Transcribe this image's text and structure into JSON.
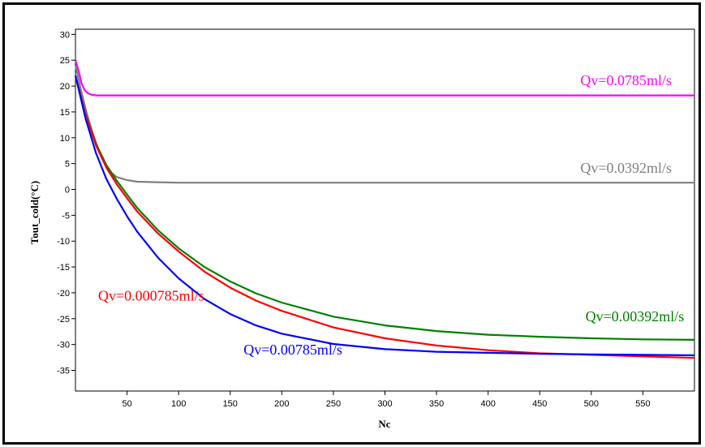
{
  "chart_data": {
    "type": "line",
    "xlabel": "Nc",
    "ylabel": "Tout_cold(°C)",
    "xlim": [
      0,
      600
    ],
    "ylim": [
      -39,
      31
    ],
    "xticks": [
      50,
      100,
      150,
      200,
      250,
      300,
      350,
      400,
      450,
      500,
      550
    ],
    "yticks": [
      30,
      25,
      20,
      15,
      10,
      5,
      0,
      -5,
      -10,
      -15,
      -20,
      -25,
      -30,
      -35
    ],
    "grid": false,
    "series": [
      {
        "name": "Qv=0.0785ml/s",
        "color": "#ff00ff",
        "points": [
          [
            0,
            25
          ],
          [
            3,
            23
          ],
          [
            6,
            20.5
          ],
          [
            9,
            19.2
          ],
          [
            12,
            18.6
          ],
          [
            16,
            18.3
          ],
          [
            20,
            18.2
          ],
          [
            30,
            18.2
          ],
          [
            100,
            18.2
          ],
          [
            300,
            18.2
          ],
          [
            600,
            18.2
          ]
        ]
      },
      {
        "name": "Qv=0.0392ml/s",
        "color": "#808080",
        "points": [
          [
            0,
            24
          ],
          [
            5,
            19.5
          ],
          [
            10,
            15.5
          ],
          [
            15,
            12
          ],
          [
            20,
            9
          ],
          [
            25,
            6.5
          ],
          [
            30,
            4.5
          ],
          [
            35,
            3.2
          ],
          [
            40,
            2.4
          ],
          [
            50,
            1.8
          ],
          [
            60,
            1.5
          ],
          [
            80,
            1.4
          ],
          [
            100,
            1.3
          ],
          [
            200,
            1.3
          ],
          [
            400,
            1.3
          ],
          [
            600,
            1.3
          ]
        ]
      },
      {
        "name": "Qv=0.00392ml/s",
        "color": "#008000",
        "points": [
          [
            0,
            22
          ],
          [
            10,
            14.5
          ],
          [
            20,
            8.8
          ],
          [
            30,
            4.7
          ],
          [
            40,
            1.7
          ],
          [
            50,
            -1.0
          ],
          [
            60,
            -3.6
          ],
          [
            80,
            -7.9
          ],
          [
            100,
            -11.4
          ],
          [
            125,
            -15.0
          ],
          [
            150,
            -17.8
          ],
          [
            175,
            -20.1
          ],
          [
            200,
            -21.9
          ],
          [
            250,
            -24.6
          ],
          [
            300,
            -26.3
          ],
          [
            350,
            -27.4
          ],
          [
            400,
            -28.1
          ],
          [
            450,
            -28.5
          ],
          [
            500,
            -28.8
          ],
          [
            550,
            -29.0
          ],
          [
            600,
            -29.1
          ]
        ]
      },
      {
        "name": "Qv=0.000785ml/s",
        "color": "#ff0000",
        "points": [
          [
            0,
            22
          ],
          [
            10,
            14.3
          ],
          [
            20,
            8.5
          ],
          [
            30,
            4.2
          ],
          [
            40,
            1.0
          ],
          [
            50,
            -1.7
          ],
          [
            60,
            -4.3
          ],
          [
            80,
            -8.5
          ],
          [
            100,
            -12.0
          ],
          [
            125,
            -15.9
          ],
          [
            150,
            -19.0
          ],
          [
            175,
            -21.5
          ],
          [
            200,
            -23.5
          ],
          [
            250,
            -26.7
          ],
          [
            300,
            -28.8
          ],
          [
            350,
            -30.2
          ],
          [
            400,
            -31.1
          ],
          [
            450,
            -31.7
          ],
          [
            500,
            -32.0
          ],
          [
            550,
            -32.3
          ],
          [
            600,
            -32.6
          ]
        ]
      },
      {
        "name": "Qv=0.00785ml/s",
        "color": "#0000ff",
        "points": [
          [
            0,
            22
          ],
          [
            10,
            13.6
          ],
          [
            20,
            7.0
          ],
          [
            30,
            2.0
          ],
          [
            40,
            -1.8
          ],
          [
            50,
            -5.2
          ],
          [
            60,
            -8.2
          ],
          [
            80,
            -13.2
          ],
          [
            100,
            -17.2
          ],
          [
            125,
            -21.2
          ],
          [
            150,
            -24.1
          ],
          [
            175,
            -26.3
          ],
          [
            200,
            -27.9
          ],
          [
            250,
            -29.9
          ],
          [
            300,
            -30.9
          ],
          [
            350,
            -31.4
          ],
          [
            400,
            -31.6
          ],
          [
            450,
            -31.8
          ],
          [
            500,
            -31.9
          ],
          [
            550,
            -32.0
          ],
          [
            600,
            -32.1
          ]
        ]
      }
    ],
    "annotations": [
      {
        "text": "Qv=0.0785ml/s",
        "series": 0,
        "x": 578,
        "y": 20.2,
        "anchor": "end"
      },
      {
        "text": "Qv=0.0392ml/s",
        "series": 1,
        "x": 578,
        "y": 3.2,
        "anchor": "end"
      },
      {
        "text": "Qv=0.00392ml/s",
        "series": 2,
        "x": 590,
        "y": -25.5,
        "anchor": "end"
      },
      {
        "text": "Qv=0.000785ml/s",
        "series": 3,
        "x": 22,
        "y": -21.5,
        "anchor": "start"
      },
      {
        "text": "Qv=0.00785ml/s",
        "series": 4,
        "x": 163,
        "y": -31.9,
        "anchor": "start"
      }
    ]
  }
}
